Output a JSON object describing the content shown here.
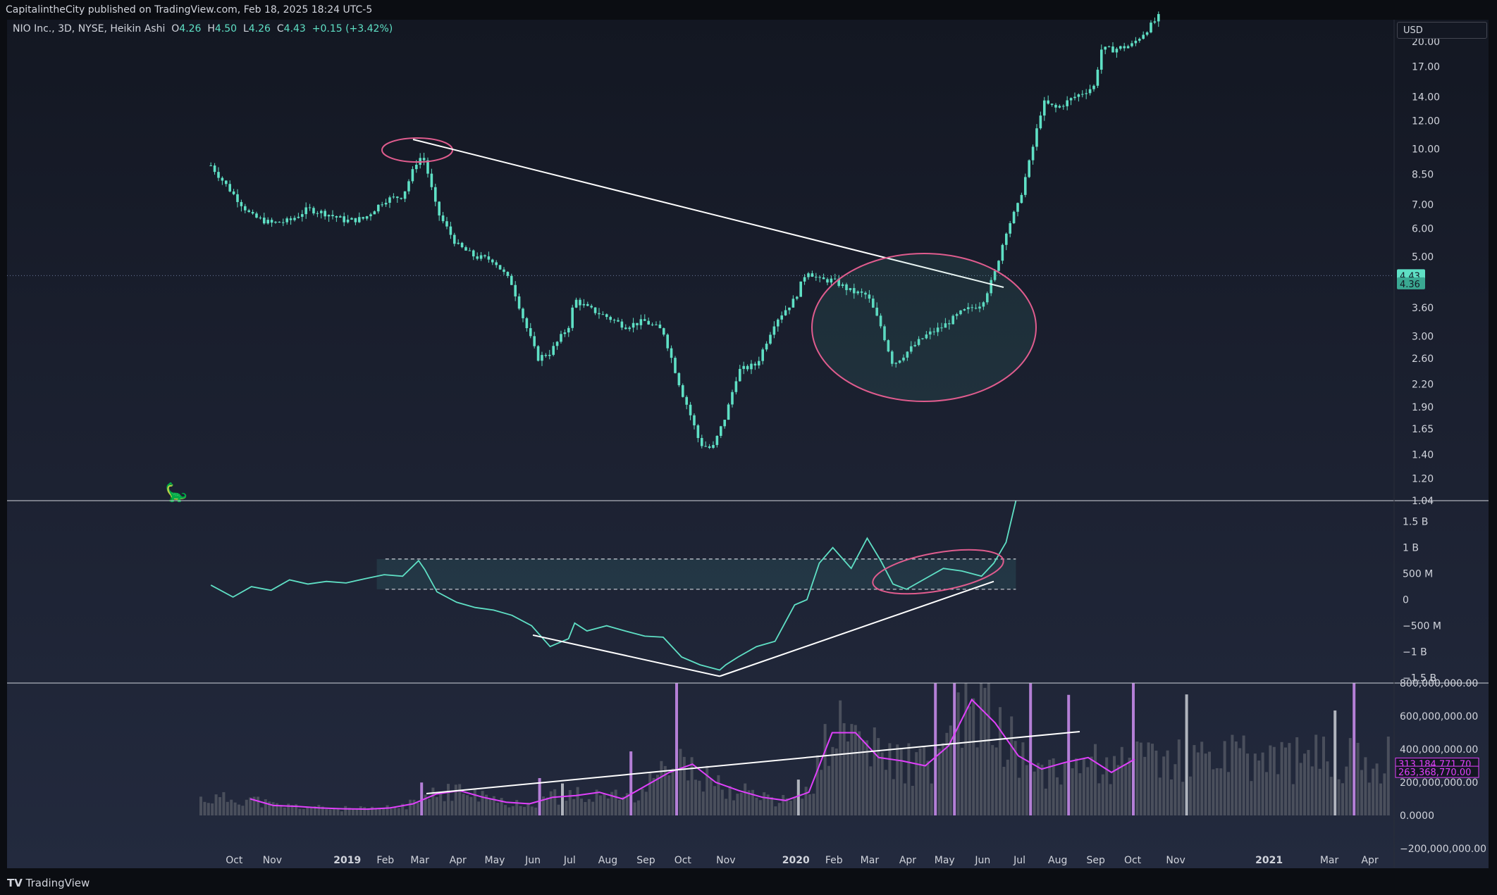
{
  "header": {
    "publish_line": "CapitalintheCity published on TradingView.com, Feb 18, 2025 18:24 UTC-5"
  },
  "legend": {
    "symbol": "NIO Inc., 3D, NYSE, Heikin Ashi",
    "o_label": "O",
    "o_value": "4.26",
    "h_label": "H",
    "h_value": "4.50",
    "l_label": "L",
    "l_value": "4.26",
    "c_label": "C",
    "c_value": "4.43",
    "change": "+0.15 (+3.42%)"
  },
  "currency_label": "USD",
  "footer": {
    "brand": "TradingView"
  },
  "colors": {
    "candle": "#5fe0c5",
    "indicator_line": "#5fe0c5",
    "annotation": "#e05c8e",
    "volume_ma": "#e040fb",
    "volume_bar": "#4a4f5c",
    "volume_highlight": "#b47fd6",
    "volume_light": "#b0b4bd"
  },
  "chart_data": [
    {
      "type": "line",
      "name": "price",
      "scale": "log",
      "ylim": [
        1.04,
        23
      ],
      "y_ticks": [
        "20.00",
        "17.00",
        "14.00",
        "12.00",
        "10.00",
        "8.50",
        "7.00",
        "6.00",
        "5.00",
        "3.60",
        "3.00",
        "2.60",
        "2.20",
        "1.90",
        "1.65",
        "1.40",
        "1.20",
        "1.04"
      ],
      "price_badges": [
        "4.43",
        "4.36"
      ],
      "x": [
        "2018-09-12",
        "2018-09-30",
        "2018-10-15",
        "2018-10-31",
        "2018-11-15",
        "2018-11-30",
        "2018-12-15",
        "2018-12-31",
        "2019-01-15",
        "2019-01-31",
        "2019-02-15",
        "2019-02-28",
        "2019-03-05",
        "2019-03-15",
        "2019-03-31",
        "2019-04-15",
        "2019-04-30",
        "2019-05-15",
        "2019-05-25",
        "2019-06-05",
        "2019-06-15",
        "2019-06-30",
        "2019-07-05",
        "2019-07-15",
        "2019-07-31",
        "2019-08-15",
        "2019-08-31",
        "2019-09-15",
        "2019-09-30",
        "2019-10-05",
        "2019-10-15",
        "2019-10-25",
        "2019-11-05",
        "2019-11-15",
        "2019-11-30",
        "2019-12-15",
        "2019-12-31",
        "2020-01-10",
        "2020-01-20",
        "2020-01-31",
        "2020-02-15",
        "2020-02-28",
        "2020-03-10",
        "2020-03-20",
        "2020-03-31",
        "2020-04-15",
        "2020-04-30",
        "2020-05-15",
        "2020-05-31",
        "2020-06-10",
        "2020-06-20",
        "2020-06-30",
        "2020-07-10",
        "2020-07-20",
        "2020-07-31",
        "2020-08-15",
        "2020-08-31",
        "2020-09-05",
        "2020-09-15",
        "2020-09-30",
        "2020-10-15",
        "2020-10-25"
      ],
      "y": [
        9.0,
        7.5,
        6.5,
        6.2,
        6.3,
        6.8,
        6.6,
        6.3,
        6.4,
        7.2,
        7.4,
        9.5,
        9.3,
        6.7,
        5.4,
        5.0,
        4.9,
        4.2,
        3.3,
        2.6,
        2.7,
        3.2,
        3.8,
        3.6,
        3.4,
        3.2,
        3.3,
        3.1,
        2.1,
        1.9,
        1.5,
        1.45,
        1.8,
        2.4,
        2.5,
        3.3,
        3.8,
        4.6,
        4.3,
        4.3,
        4.0,
        3.9,
        3.2,
        2.5,
        2.7,
        3.0,
        3.2,
        3.5,
        3.7,
        4.4,
        5.9,
        7.0,
        9.5,
        13.5,
        13.0,
        14.0,
        15.0,
        19.0,
        19.0,
        19.5,
        22.0,
        24.0
      ],
      "annotations": [
        "trendline from Mar 2019 high to Jun 2020",
        "ellipse around Mar 2019 high",
        "ellipse around Jan–Jun 2020 base"
      ]
    },
    {
      "type": "line",
      "name": "cumulative indicator",
      "ylim": [
        -1.6,
        1.9
      ],
      "y_ticks": [
        "1.5 B",
        "1 B",
        "500 M",
        "0",
        "−500 M",
        "−1 B",
        "−1.5 B"
      ],
      "x": [
        "2018-09-12",
        "2018-09-30",
        "2018-10-15",
        "2018-10-31",
        "2018-11-15",
        "2018-11-30",
        "2018-12-15",
        "2018-12-31",
        "2019-01-15",
        "2019-01-31",
        "2019-02-15",
        "2019-02-28",
        "2019-03-05",
        "2019-03-15",
        "2019-03-31",
        "2019-04-15",
        "2019-04-30",
        "2019-05-15",
        "2019-05-31",
        "2019-06-15",
        "2019-06-30",
        "2019-07-05",
        "2019-07-15",
        "2019-07-31",
        "2019-08-15",
        "2019-08-31",
        "2019-09-15",
        "2019-09-30",
        "2019-10-15",
        "2019-10-31",
        "2019-11-05",
        "2019-11-15",
        "2019-11-30",
        "2019-12-15",
        "2019-12-31",
        "2020-01-10",
        "2020-01-20",
        "2020-01-31",
        "2020-02-15",
        "2020-02-28",
        "2020-03-10",
        "2020-03-20",
        "2020-03-31",
        "2020-04-15",
        "2020-04-30",
        "2020-05-15",
        "2020-05-31",
        "2020-06-10",
        "2020-06-20",
        "2020-06-28"
      ],
      "y": [
        0.28,
        0.05,
        0.25,
        0.18,
        0.38,
        0.3,
        0.35,
        0.32,
        0.4,
        0.48,
        0.45,
        0.75,
        0.58,
        0.15,
        -0.05,
        -0.15,
        -0.2,
        -0.3,
        -0.5,
        -0.9,
        -0.75,
        -0.45,
        -0.6,
        -0.5,
        -0.6,
        -0.7,
        -0.72,
        -1.1,
        -1.25,
        -1.35,
        -1.25,
        -1.1,
        -0.9,
        -0.8,
        -0.1,
        0.0,
        0.7,
        1.0,
        0.6,
        1.18,
        0.75,
        0.3,
        0.2,
        0.4,
        0.6,
        0.55,
        0.45,
        0.7,
        1.1,
        1.9
      ],
      "reference_lines": [
        0.78,
        0.2
      ],
      "annotations": [
        "support trendline from Jun 2019",
        "support trendline from Nov 2019",
        "ellipse around Apr–Jun 2020"
      ]
    },
    {
      "type": "bar",
      "name": "volume",
      "ylim": [
        -200000000,
        800000000
      ],
      "y_ticks": [
        "800,000,000.00",
        "600,000,000.00",
        "400,000,000.00",
        "200,000,000.00",
        "0.0000",
        "−200,000,000.00"
      ],
      "last_values": [
        "313,184,771.70",
        "263,368,770.00"
      ],
      "x_ticks": [
        "Oct",
        "Nov",
        "2019",
        "Feb",
        "Mar",
        "Apr",
        "May",
        "Jun",
        "Jul",
        "Aug",
        "Sep",
        "Oct",
        "Nov",
        "2020",
        "Feb",
        "Mar",
        "Apr",
        "May",
        "Jun",
        "Jul",
        "Aug",
        "Sep",
        "Oct",
        "Nov",
        "2021",
        "Mar",
        "Apr"
      ],
      "ma_values": [
        100000000,
        60000000,
        55000000,
        45000000,
        40000000,
        38000000,
        45000000,
        70000000,
        130000000,
        150000000,
        110000000,
        80000000,
        70000000,
        110000000,
        120000000,
        140000000,
        100000000,
        180000000,
        260000000,
        310000000,
        200000000,
        150000000,
        110000000,
        90000000,
        140000000,
        500000000,
        500000000,
        350000000,
        330000000,
        300000000,
        420000000,
        700000000,
        560000000,
        360000000,
        280000000,
        320000000,
        350000000,
        260000000,
        340000000
      ]
    }
  ]
}
